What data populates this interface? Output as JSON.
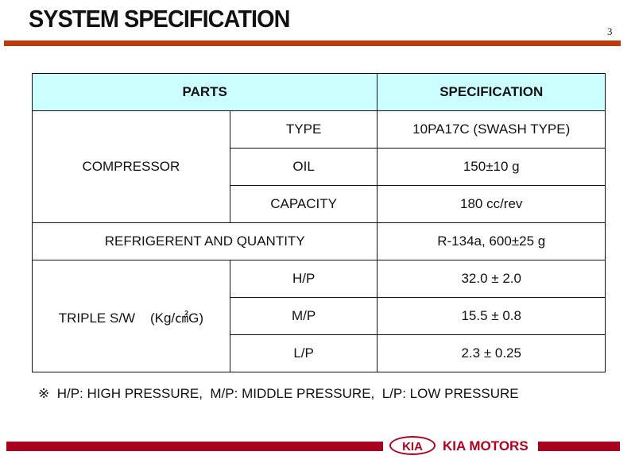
{
  "title": "SYSTEM SPECIFICATION",
  "page_number": "3",
  "table": {
    "headers": [
      "PARTS",
      "SPECIFICATION"
    ],
    "compressor": {
      "label": "COMPRESSOR",
      "rows": [
        {
          "name": "TYPE",
          "value": "10PA17C (SWASH TYPE)"
        },
        {
          "name": "OIL",
          "value": "150±10 g"
        },
        {
          "name": "CAPACITY",
          "value": "180 cc/rev"
        }
      ]
    },
    "refrigerant": {
      "label": "REFRIGERENT AND QUANTITY",
      "value": "R-134a, 600±25 g"
    },
    "triple": {
      "label": "TRIPLE S/W    (Kg/㎠G)",
      "rows": [
        {
          "name": "H/P",
          "value": "32.0 ± 2.0"
        },
        {
          "name": "M/P",
          "value": "15.5 ± 0.8"
        },
        {
          "name": "L/P",
          "value": "2.3 ± 0.25"
        }
      ]
    }
  },
  "footnote": "※  H/P: HIGH PRESSURE,  M/P: MIDDLE PRESSURE,  L/P: LOW PRESSURE",
  "logo": {
    "emblem": "KIA",
    "text": "KIA MOTORS"
  },
  "colors": {
    "rule": "#c0390b",
    "header_bg": "#ccffff",
    "brand": "#a8001e"
  }
}
